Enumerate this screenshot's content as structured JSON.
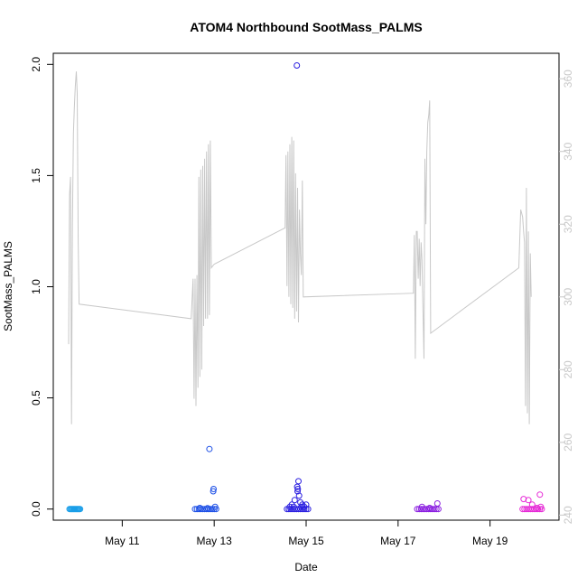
{
  "chart_data": {
    "type": "scatter",
    "title": "ATOM4 Northbound SootMass_PALMS",
    "xlabel": "Date",
    "ylabel": "SootMass_PALMS",
    "x_tick_labels": [
      "May 11",
      "May 13",
      "May 15",
      "May 17",
      "May 19"
    ],
    "x_ticks": [
      "2018-05-11",
      "2018-05-13",
      "2018-05-15",
      "2018-05-17",
      "2018-05-19"
    ],
    "xlim": [
      "2018-05-09T12:00",
      "2018-05-20T12:00"
    ],
    "ylim": [
      -0.05,
      2.05
    ],
    "y_ticks": [
      0.0,
      0.5,
      1.0,
      1.5,
      2.0
    ],
    "y_tick_labels": [
      "0.0",
      "0.5",
      "1.0",
      "1.5",
      "2.0"
    ],
    "y2_ticks": [
      240,
      260,
      280,
      300,
      320,
      340,
      360
    ],
    "y2_tick_labels": [
      "240",
      "260",
      "280",
      "300",
      "320",
      "340",
      "360"
    ],
    "y2lim": [
      238.6,
      367.0
    ],
    "y2_color": "#c8c8c8",
    "grid": false,
    "legend": "none",
    "series": [
      {
        "color": "#1a9ee8",
        "points": [
          [
            "2018-05-09T20:30",
            0.0
          ],
          [
            "2018-05-09T21:00",
            0.0
          ],
          [
            "2018-05-09T21:30",
            0.0
          ],
          [
            "2018-05-09T22:00",
            0.0
          ],
          [
            "2018-05-09T22:30",
            0.0
          ],
          [
            "2018-05-09T23:00",
            0.0
          ],
          [
            "2018-05-09T23:30",
            0.0
          ],
          [
            "2018-05-10T00:00",
            0.0
          ],
          [
            "2018-05-10T00:30",
            0.0
          ],
          [
            "2018-05-10T01:00",
            0.0
          ],
          [
            "2018-05-10T01:30",
            0.0
          ],
          [
            "2018-05-10T02:00",
            0.0
          ]
        ]
      },
      {
        "color": "#1e50e6",
        "points": [
          [
            "2018-05-12T14:00",
            0.0
          ],
          [
            "2018-05-12T15:00",
            0.0
          ],
          [
            "2018-05-12T16:00",
            0.0
          ],
          [
            "2018-05-12T17:00",
            0.0
          ],
          [
            "2018-05-12T18:00",
            0.0
          ],
          [
            "2018-05-12T19:00",
            0.0
          ],
          [
            "2018-05-12T20:00",
            0.0
          ],
          [
            "2018-05-12T21:00",
            0.0
          ],
          [
            "2018-05-12T22:00",
            0.0
          ],
          [
            "2018-05-12T23:00",
            0.0
          ],
          [
            "2018-05-13T00:00",
            0.0
          ],
          [
            "2018-05-13T01:00",
            0.0
          ],
          [
            "2018-05-12T16:30",
            0.005
          ],
          [
            "2018-05-12T20:30",
            0.004
          ],
          [
            "2018-05-12T21:30",
            0.27
          ],
          [
            "2018-05-12T23:30",
            0.08
          ],
          [
            "2018-05-12T23:40",
            0.09
          ],
          [
            "2018-05-13T00:30",
            0.01
          ]
        ]
      },
      {
        "color": "#2a1ee0",
        "points": [
          [
            "2018-05-14T14:00",
            0.0
          ],
          [
            "2018-05-14T15:00",
            0.0
          ],
          [
            "2018-05-14T16:00",
            0.0
          ],
          [
            "2018-05-14T17:00",
            0.0
          ],
          [
            "2018-05-14T18:00",
            0.0
          ],
          [
            "2018-05-14T19:00",
            0.0
          ],
          [
            "2018-05-14T20:00",
            0.0
          ],
          [
            "2018-05-14T21:00",
            0.0
          ],
          [
            "2018-05-14T22:00",
            0.0
          ],
          [
            "2018-05-14T23:00",
            0.0
          ],
          [
            "2018-05-15T00:00",
            0.0
          ],
          [
            "2018-05-15T01:00",
            0.0
          ],
          [
            "2018-05-14T15:30",
            0.01
          ],
          [
            "2018-05-14T16:30",
            0.02
          ],
          [
            "2018-05-14T17:30",
            0.01
          ],
          [
            "2018-05-14T18:00",
            0.04
          ],
          [
            "2018-05-14T19:10",
            1.995
          ],
          [
            "2018-05-14T19:20",
            0.1
          ],
          [
            "2018-05-14T19:30",
            0.08
          ],
          [
            "2018-05-14T19:40",
            0.09
          ],
          [
            "2018-05-14T20:00",
            0.125
          ],
          [
            "2018-05-14T20:20",
            0.06
          ],
          [
            "2018-05-14T21:00",
            0.03
          ],
          [
            "2018-05-14T21:30",
            0.01
          ],
          [
            "2018-05-14T22:00",
            0.02
          ],
          [
            "2018-05-14T23:00",
            0.01
          ],
          [
            "2018-05-15T00:00",
            0.02
          ]
        ]
      },
      {
        "color": "#8a1ee0",
        "points": [
          [
            "2018-05-17T10:00",
            0.0
          ],
          [
            "2018-05-17T11:00",
            0.0
          ],
          [
            "2018-05-17T12:00",
            0.0
          ],
          [
            "2018-05-17T13:00",
            0.0
          ],
          [
            "2018-05-17T14:00",
            0.0
          ],
          [
            "2018-05-17T15:00",
            0.0
          ],
          [
            "2018-05-17T16:00",
            0.0
          ],
          [
            "2018-05-17T17:00",
            0.0
          ],
          [
            "2018-05-17T18:00",
            0.0
          ],
          [
            "2018-05-17T19:00",
            0.0
          ],
          [
            "2018-05-17T20:00",
            0.0
          ],
          [
            "2018-05-17T21:00",
            0.0
          ],
          [
            "2018-05-17T12:30",
            0.01
          ],
          [
            "2018-05-17T16:30",
            0.005
          ],
          [
            "2018-05-17T20:30",
            0.025
          ]
        ]
      },
      {
        "color": "#e62ad6",
        "points": [
          [
            "2018-05-19T17:00",
            0.0
          ],
          [
            "2018-05-19T18:00",
            0.0
          ],
          [
            "2018-05-19T19:00",
            0.0
          ],
          [
            "2018-05-19T20:00",
            0.0
          ],
          [
            "2018-05-19T21:00",
            0.0
          ],
          [
            "2018-05-19T22:00",
            0.0
          ],
          [
            "2018-05-19T23:00",
            0.0
          ],
          [
            "2018-05-20T00:00",
            0.0
          ],
          [
            "2018-05-20T01:00",
            0.0
          ],
          [
            "2018-05-20T02:00",
            0.0
          ],
          [
            "2018-05-20T03:00",
            0.0
          ],
          [
            "2018-05-19T17:30",
            0.045
          ],
          [
            "2018-05-19T20:00",
            0.04
          ],
          [
            "2018-05-19T22:00",
            0.02
          ],
          [
            "2018-05-20T00:30",
            0.005
          ],
          [
            "2018-05-20T02:00",
            0.065
          ],
          [
            "2018-05-20T02:30",
            0.01
          ]
        ]
      }
    ],
    "secondary_series": {
      "color": "#c8c8c8",
      "axis": "right",
      "points": [
        [
          "2018-05-09T20:00",
          287
        ],
        [
          "2018-05-09T20:30",
          328
        ],
        [
          "2018-05-09T21:00",
          333
        ],
        [
          "2018-05-09T21:30",
          265
        ],
        [
          "2018-05-09T22:00",
          320
        ],
        [
          "2018-05-09T22:30",
          345
        ],
        [
          "2018-05-09T23:00",
          352
        ],
        [
          "2018-05-09T23:30",
          358
        ],
        [
          "2018-05-10T00:00",
          362
        ],
        [
          "2018-05-10T00:30",
          356
        ],
        [
          "2018-05-10T01:00",
          315
        ],
        [
          "2018-05-10T01:30",
          298
        ],
        [
          "2018-05-12T12:00",
          294
        ],
        [
          "2018-05-12T13:00",
          305
        ],
        [
          "2018-05-12T13:30",
          272
        ],
        [
          "2018-05-12T14:00",
          305
        ],
        [
          "2018-05-12T14:30",
          270
        ],
        [
          "2018-05-12T15:00",
          306
        ],
        [
          "2018-05-12T15:30",
          275
        ],
        [
          "2018-05-12T16:00",
          333
        ],
        [
          "2018-05-12T16:30",
          278
        ],
        [
          "2018-05-12T17:00",
          335
        ],
        [
          "2018-05-12T17:30",
          280
        ],
        [
          "2018-05-12T18:00",
          336
        ],
        [
          "2018-05-12T18:30",
          292
        ],
        [
          "2018-05-12T19:00",
          338
        ],
        [
          "2018-05-12T19:30",
          294
        ],
        [
          "2018-05-12T20:00",
          340
        ],
        [
          "2018-05-12T20:30",
          294
        ],
        [
          "2018-05-12T21:00",
          342
        ],
        [
          "2018-05-12T21:30",
          295
        ],
        [
          "2018-05-12T22:00",
          343
        ],
        [
          "2018-05-12T22:30",
          308
        ],
        [
          "2018-05-13T00:00",
          309
        ],
        [
          "2018-05-14T13:00",
          319
        ],
        [
          "2018-05-14T13:30",
          339
        ],
        [
          "2018-05-14T14:00",
          303
        ],
        [
          "2018-05-14T14:30",
          340
        ],
        [
          "2018-05-14T15:00",
          300
        ],
        [
          "2018-05-14T15:30",
          342
        ],
        [
          "2018-05-14T16:00",
          298
        ],
        [
          "2018-05-14T16:30",
          344
        ],
        [
          "2018-05-14T17:00",
          297
        ],
        [
          "2018-05-14T17:30",
          343
        ],
        [
          "2018-05-14T18:00",
          294
        ],
        [
          "2018-05-14T18:30",
          334
        ],
        [
          "2018-05-14T19:00",
          296
        ],
        [
          "2018-05-14T19:30",
          330
        ],
        [
          "2018-05-14T20:00",
          293
        ],
        [
          "2018-05-14T20:30",
          324
        ],
        [
          "2018-05-14T21:00",
          312
        ],
        [
          "2018-05-14T21:30",
          306
        ],
        [
          "2018-05-14T22:00",
          332
        ],
        [
          "2018-05-14T22:30",
          300
        ],
        [
          "2018-05-17T08:00",
          301
        ],
        [
          "2018-05-17T08:30",
          317
        ],
        [
          "2018-05-17T09:00",
          283
        ],
        [
          "2018-05-17T09:30",
          318
        ],
        [
          "2018-05-17T10:00",
          318
        ],
        [
          "2018-05-17T10:30",
          305
        ],
        [
          "2018-05-17T11:00",
          316
        ],
        [
          "2018-05-17T11:30",
          303
        ],
        [
          "2018-05-17T12:00",
          315
        ],
        [
          "2018-05-17T12:30",
          310
        ],
        [
          "2018-05-17T13:00",
          296
        ],
        [
          "2018-05-17T13:30",
          283
        ],
        [
          "2018-05-17T14:00",
          338
        ],
        [
          "2018-05-17T14:30",
          320
        ],
        [
          "2018-05-17T15:00",
          340
        ],
        [
          "2018-05-17T15:30",
          348
        ],
        [
          "2018-05-17T16:00",
          350
        ],
        [
          "2018-05-17T16:30",
          354
        ],
        [
          "2018-05-17T17:00",
          290
        ],
        [
          "2018-05-19T15:00",
          308
        ],
        [
          "2018-05-19T16:00",
          324
        ],
        [
          "2018-05-19T17:00",
          322
        ],
        [
          "2018-05-19T17:30",
          318
        ],
        [
          "2018-05-19T18:00",
          315
        ],
        [
          "2018-05-19T18:30",
          270
        ],
        [
          "2018-05-19T19:00",
          330
        ],
        [
          "2018-05-19T19:30",
          268
        ],
        [
          "2018-05-19T20:00",
          318
        ],
        [
          "2018-05-19T20:30",
          265
        ],
        [
          "2018-05-19T21:00",
          312
        ],
        [
          "2018-05-19T21:30",
          300
        ]
      ]
    }
  }
}
